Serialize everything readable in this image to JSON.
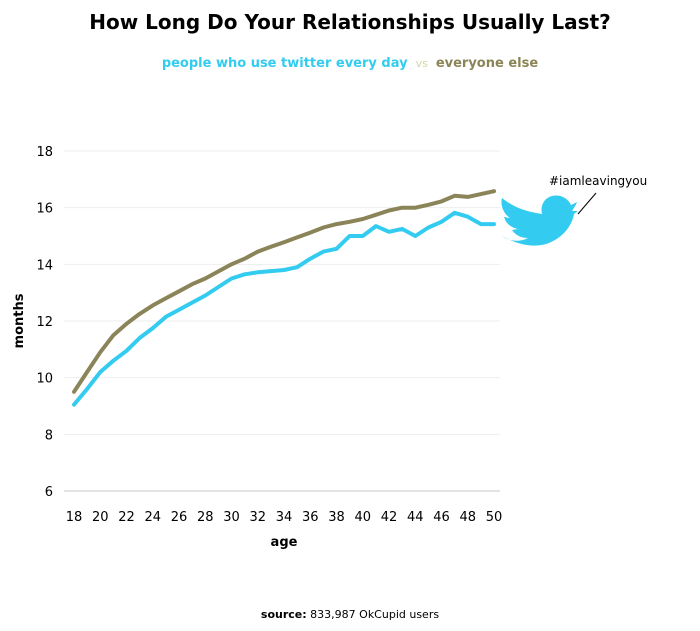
{
  "chart_data": {
    "type": "line",
    "title": "How Long Do Your Relationships  Usually Last?",
    "xlabel": "age",
    "ylabel": "months",
    "xlim": [
      18,
      50
    ],
    "ylim": [
      6,
      18
    ],
    "xticks": [
      18,
      20,
      22,
      24,
      26,
      28,
      30,
      32,
      34,
      36,
      38,
      40,
      42,
      44,
      46,
      48,
      50
    ],
    "yticks": [
      6,
      8,
      10,
      12,
      14,
      16,
      18
    ],
    "grid": true,
    "legend": {
      "placement": "top-center",
      "vs_label": "vs"
    },
    "x": [
      18,
      19,
      20,
      21,
      22,
      23,
      24,
      25,
      26,
      27,
      28,
      29,
      30,
      31,
      32,
      33,
      34,
      35,
      36,
      37,
      38,
      39,
      40,
      41,
      42,
      43,
      44,
      45,
      46,
      47,
      48,
      49,
      50
    ],
    "series": [
      {
        "name": "people who use twitter every day",
        "color": "#33ccf0",
        "values": [
          9.05,
          9.6,
          10.2,
          10.6,
          10.95,
          11.4,
          11.75,
          12.15,
          12.4,
          12.65,
          12.9,
          13.2,
          13.5,
          13.65,
          13.72,
          13.76,
          13.8,
          13.9,
          14.2,
          14.45,
          14.55,
          15.0,
          15.0,
          15.35,
          15.15,
          15.25,
          15.0,
          15.3,
          15.5,
          15.82,
          15.68,
          15.42,
          15.42
        ]
      },
      {
        "name": "everyone else",
        "color": "#8b8458",
        "values": [
          9.5,
          10.2,
          10.9,
          11.5,
          11.9,
          12.25,
          12.55,
          12.8,
          13.05,
          13.3,
          13.5,
          13.75,
          14.0,
          14.2,
          14.45,
          14.62,
          14.78,
          14.95,
          15.12,
          15.3,
          15.42,
          15.5,
          15.6,
          15.75,
          15.9,
          16.0,
          16.0,
          16.1,
          16.22,
          16.42,
          16.38,
          16.48,
          16.58
        ]
      }
    ],
    "annotation": "#iamleavingyou"
  },
  "source": {
    "prefix": "source:",
    "text": "833,987 OkCupid users"
  }
}
